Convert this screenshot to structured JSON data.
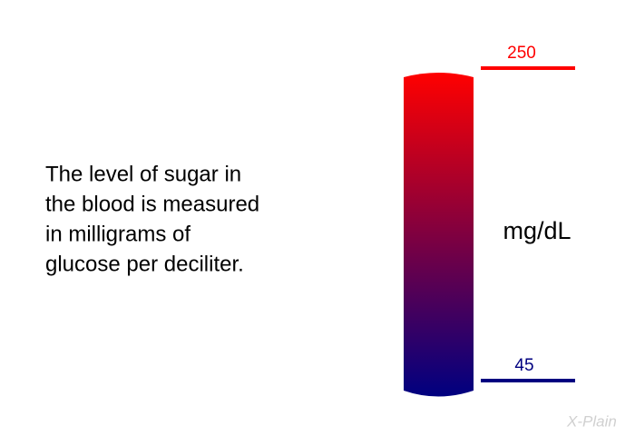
{
  "text_lines": [
    "The level of sugar in",
    "the blood is measured",
    "in milligrams of",
    "glucose per deciliter."
  ],
  "gauge": {
    "high": 250,
    "low": 45,
    "unit": "mg/dL"
  },
  "logo": "X-Plain"
}
